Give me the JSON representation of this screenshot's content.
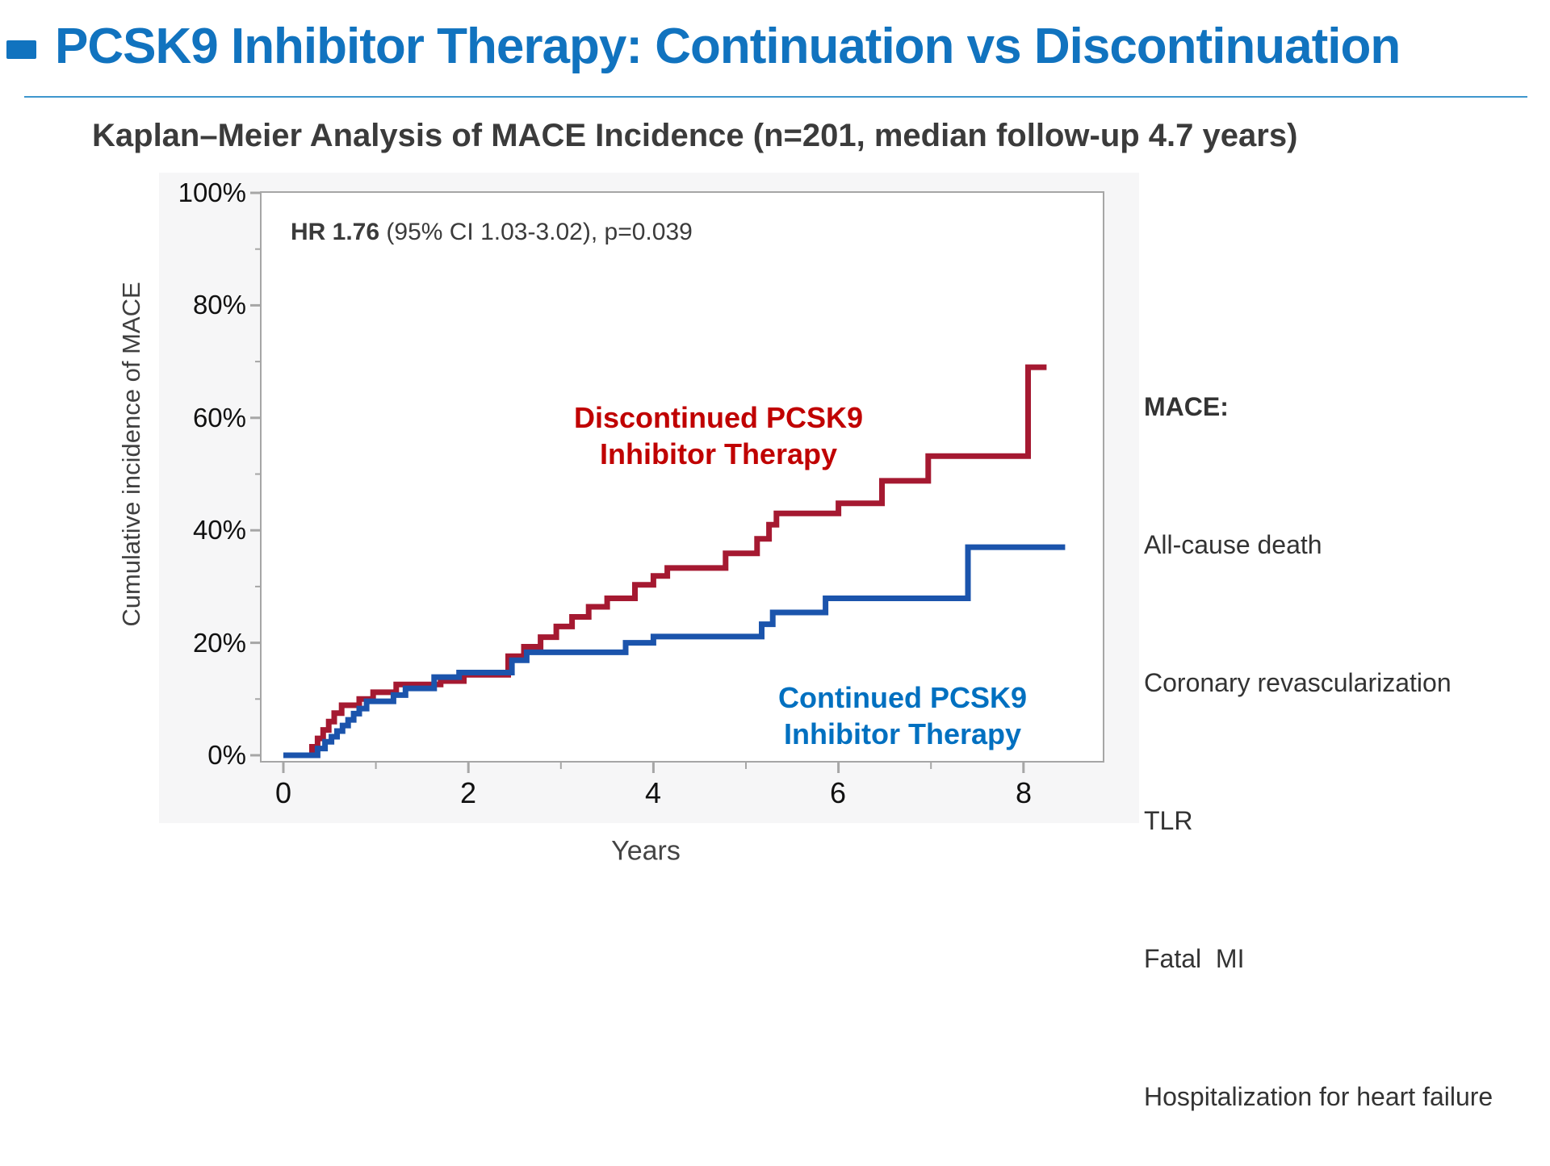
{
  "header": {
    "title": "PCSK9 Inhibitor Therapy: Continuation vs Discontinuation",
    "accent_color": "#1173BF"
  },
  "subtitle": "Kaplan–Meier Analysis of MACE Incidence (n=201, median follow-up 4.7 years)",
  "annotation": {
    "hr_bold": "HR 1.76",
    "hr_rest": " (95% CI 1.03-3.02), p=0.039"
  },
  "mace_panel": {
    "heading": "MACE:",
    "items": [
      "All-cause death",
      "Coronary revascularization",
      "TLR",
      "Fatal  MI",
      "Hospitalization for heart failure"
    ]
  },
  "chart_data": {
    "type": "line",
    "subtype": "kaplan-meier-step",
    "title": "Kaplan–Meier Analysis of MACE Incidence (n=201, median follow-up 4.7 years)",
    "xlabel": "Years",
    "ylabel": "Cumulative incidence of MACE",
    "xlim": [
      0,
      8.9
    ],
    "ylim": [
      0,
      100
    ],
    "grid": false,
    "xticks": [
      0,
      2,
      4,
      6,
      8
    ],
    "xticks_minor": [
      1,
      3,
      5,
      7
    ],
    "xtick_labels": [
      "0",
      "2",
      "4",
      "6",
      "8"
    ],
    "yticks": [
      0,
      20,
      40,
      60,
      80,
      100
    ],
    "yticks_minor": [
      10,
      30,
      50,
      70,
      90
    ],
    "ytick_labels": [
      "0%",
      "20%",
      "40%",
      "60%",
      "80%",
      "100%"
    ],
    "annotation_text": "HR 1.76 (95% CI 1.03-3.02), p=0.039",
    "axis_color": "#A6A6A6",
    "plot_bg": "#FFFFFF",
    "panel_bg": "#F6F6F7",
    "series": [
      {
        "name": "Discontinued PCSK9 Inhibitor Therapy",
        "label_lines": [
          "Discontinued PCSK9",
          "Inhibitor Therapy"
        ],
        "color": "#A51931",
        "label_color": "#C00000",
        "points_format": "[years, cumulative_incidence_percent]",
        "points": [
          [
            0,
            0
          ],
          [
            0.31,
            1.5
          ],
          [
            0.37,
            3
          ],
          [
            0.43,
            4.5
          ],
          [
            0.49,
            6
          ],
          [
            0.55,
            7.5
          ],
          [
            0.63,
            8.9
          ],
          [
            0.82,
            10
          ],
          [
            0.97,
            11.2
          ],
          [
            1.22,
            12.6
          ],
          [
            1.7,
            13.2
          ],
          [
            1.95,
            14.3
          ],
          [
            2.43,
            17.6
          ],
          [
            2.6,
            19.3
          ],
          [
            2.78,
            21
          ],
          [
            2.95,
            22.9
          ],
          [
            3.12,
            24.6
          ],
          [
            3.3,
            26.4
          ],
          [
            3.5,
            27.9
          ],
          [
            3.8,
            30.3
          ],
          [
            4.0,
            31.9
          ],
          [
            4.15,
            33.3
          ],
          [
            4.78,
            35.9
          ],
          [
            5.12,
            38.5
          ],
          [
            5.25,
            41
          ],
          [
            5.33,
            43
          ],
          [
            6.0,
            44.8
          ],
          [
            6.47,
            48.8
          ],
          [
            6.97,
            53.2
          ],
          [
            8.05,
            69
          ],
          [
            8.25,
            69
          ]
        ]
      },
      {
        "name": "Continued PCSK9 Inhibitor Therapy",
        "label_lines": [
          "Continued PCSK9",
          "Inhibitor Therapy"
        ],
        "color": "#1B54AC",
        "label_color": "#0070C0",
        "points_format": "[years, cumulative_incidence_percent]",
        "points": [
          [
            0,
            0
          ],
          [
            0.37,
            1.2
          ],
          [
            0.45,
            2.4
          ],
          [
            0.52,
            3.3
          ],
          [
            0.58,
            4.3
          ],
          [
            0.64,
            5.3
          ],
          [
            0.7,
            6.3
          ],
          [
            0.76,
            7.4
          ],
          [
            0.82,
            8.3
          ],
          [
            0.9,
            9.6
          ],
          [
            1.19,
            10.7
          ],
          [
            1.32,
            11.9
          ],
          [
            1.63,
            13.9
          ],
          [
            1.9,
            14.7
          ],
          [
            2.47,
            16.9
          ],
          [
            2.63,
            18.3
          ],
          [
            3.7,
            20
          ],
          [
            4.0,
            21.1
          ],
          [
            5.17,
            23.3
          ],
          [
            5.29,
            25.4
          ],
          [
            5.86,
            27.9
          ],
          [
            7.4,
            37
          ],
          [
            8.45,
            37
          ]
        ]
      }
    ]
  }
}
